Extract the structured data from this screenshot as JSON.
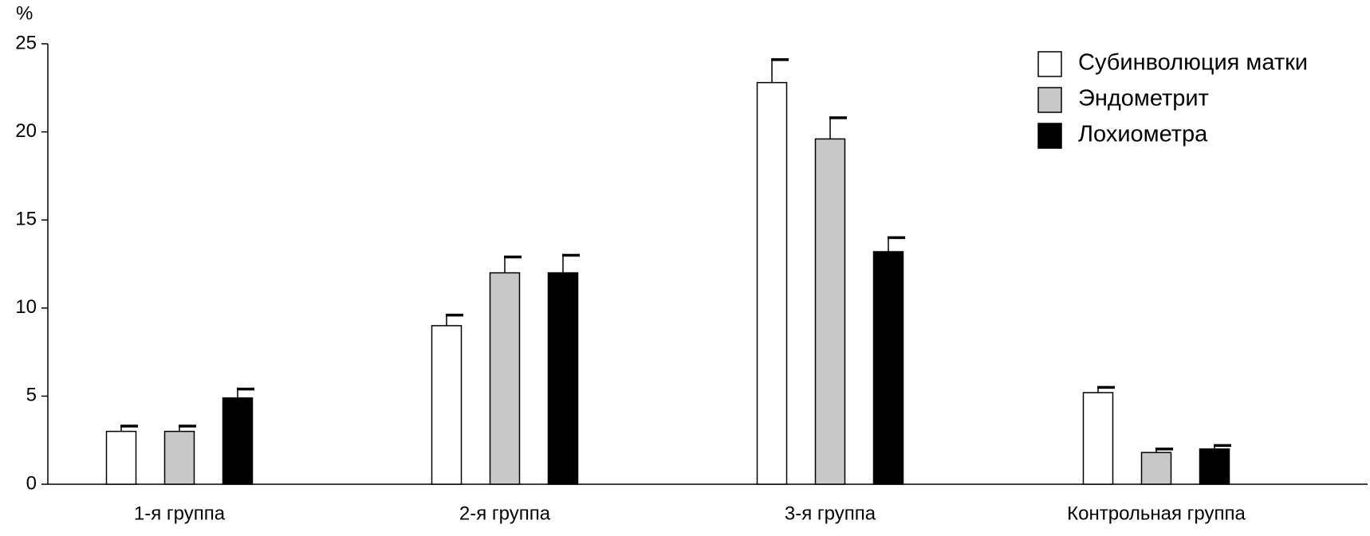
{
  "chart_data": {
    "type": "bar",
    "y_label": "%",
    "categories": [
      "1-я группа",
      "2-я группа",
      "3-я группа",
      "Контрольная группа"
    ],
    "series": [
      {
        "name": "Субинволюция матки",
        "color": "#ffffff",
        "values": [
          3.0,
          9.0,
          22.8,
          5.2
        ],
        "errors": [
          0.3,
          0.6,
          1.3,
          0.3
        ]
      },
      {
        "name": "Эндометрит",
        "color": "#c8c8c8",
        "values": [
          3.0,
          12.0,
          19.6,
          1.8
        ],
        "errors": [
          0.3,
          0.9,
          1.2,
          0.2
        ]
      },
      {
        "name": "Лохиометра",
        "color": "#000000",
        "values": [
          4.9,
          12.0,
          13.2,
          2.0
        ],
        "errors": [
          0.5,
          1.0,
          0.8,
          0.2
        ]
      }
    ],
    "ylim": [
      0,
      25
    ],
    "yticks": [
      0,
      5,
      10,
      15,
      20,
      25
    ],
    "legend": "top-right"
  }
}
